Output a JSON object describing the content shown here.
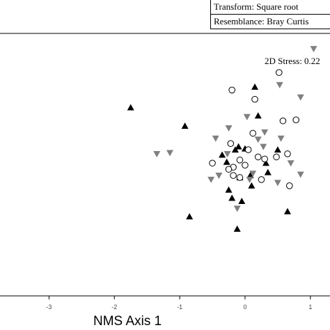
{
  "legend": {
    "transform": "Transform:  Square root",
    "resemblance": "Resemblance:  Bray Curtis"
  },
  "stress": "2D Stress: 0.22",
  "chart_data": {
    "type": "scatter",
    "xlabel": "NMS Axis 1",
    "ylabel": "",
    "xlim": [
      -3.75,
      1.3
    ],
    "ylim": [
      -1.25,
      1.3
    ],
    "x_ticks": [
      "-3",
      "-2",
      "-1",
      "0",
      "1"
    ],
    "colors": {
      "black": "#000000",
      "gray": "#808080",
      "open": "#ffffff"
    },
    "series": [
      {
        "marker": "triangle-up-black",
        "points": [
          [
            -1.75,
            0.58
          ],
          [
            -0.92,
            0.4
          ],
          [
            -0.85,
            -0.48
          ],
          [
            -0.35,
            0.12
          ],
          [
            -0.28,
            0.05
          ],
          [
            -0.25,
            -0.22
          ],
          [
            -0.2,
            -0.3
          ],
          [
            -0.15,
            0.17
          ],
          [
            -0.1,
            0.2
          ],
          [
            -0.08,
            -0.1
          ],
          [
            0.0,
            0.18
          ],
          [
            0.08,
            -0.08
          ],
          [
            0.1,
            -0.18
          ],
          [
            -0.05,
            -0.33
          ],
          [
            0.15,
            0.78
          ],
          [
            0.2,
            0.5
          ],
          [
            0.32,
            0.04
          ],
          [
            0.35,
            -0.05
          ],
          [
            0.5,
            0.17
          ],
          [
            0.65,
            -0.43
          ],
          [
            -0.12,
            -0.6
          ]
        ]
      },
      {
        "marker": "triangle-down-gray",
        "points": [
          [
            1.05,
            1.15
          ],
          [
            0.53,
            0.8
          ],
          [
            0.85,
            0.68
          ],
          [
            0.03,
            0.49
          ],
          [
            0.3,
            0.34
          ],
          [
            -0.25,
            0.38
          ],
          [
            -0.45,
            0.28
          ],
          [
            -1.35,
            0.13
          ],
          [
            -1.15,
            0.14
          ],
          [
            -0.27,
            0.13
          ],
          [
            -0.4,
            -0.08
          ],
          [
            -0.52,
            -0.12
          ],
          [
            0.07,
            -0.12
          ],
          [
            0.12,
            -0.06
          ],
          [
            0.28,
            0.2
          ],
          [
            0.7,
            0.04
          ],
          [
            0.85,
            -0.07
          ],
          [
            -0.12,
            -0.4
          ],
          [
            0.5,
            -0.15
          ],
          [
            0.55,
            0.28
          ],
          [
            0.2,
            0.27
          ]
        ]
      },
      {
        "marker": "circle-open",
        "points": [
          [
            0.52,
            0.92
          ],
          [
            0.15,
            0.66
          ],
          [
            -0.2,
            0.75
          ],
          [
            0.58,
            0.45
          ],
          [
            0.78,
            0.46
          ],
          [
            0.12,
            0.33
          ],
          [
            -0.22,
            0.23
          ],
          [
            -0.5,
            0.04
          ],
          [
            -0.18,
            0.0
          ],
          [
            -0.08,
            0.07
          ],
          [
            0.05,
            0.17
          ],
          [
            0.3,
            0.08
          ],
          [
            0.48,
            0.1
          ],
          [
            0.65,
            0.13
          ],
          [
            -0.25,
            -0.02
          ],
          [
            -0.18,
            -0.08
          ],
          [
            0.0,
            0.02
          ],
          [
            0.2,
            0.1
          ],
          [
            0.25,
            -0.12
          ],
          [
            0.68,
            -0.18
          ],
          [
            -0.08,
            -0.1
          ]
        ]
      }
    ]
  }
}
